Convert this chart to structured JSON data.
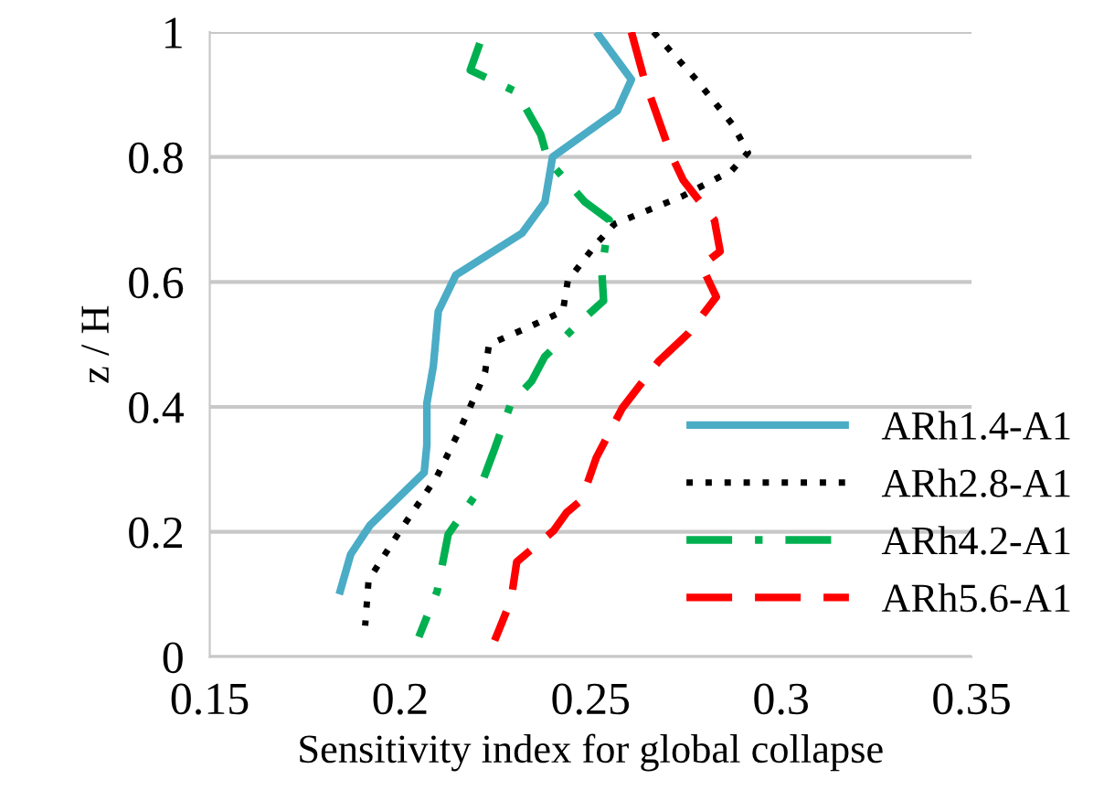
{
  "chart_data": {
    "type": "line",
    "xlabel": "Sensitivity index for global collapse",
    "ylabel": "z / H",
    "xlim": [
      0.15,
      0.35
    ],
    "xticks": [
      0.15,
      0.2,
      0.25,
      0.3,
      0.35
    ],
    "ylim": [
      0,
      1
    ],
    "yticks": [
      0,
      0.2,
      0.4,
      0.6,
      0.8,
      1
    ],
    "grid": "y",
    "legend": "bottom right",
    "series": [
      {
        "name": "ARh1.4-A1",
        "color": "#4bacc6",
        "line_style": "solid",
        "x": [
          0.2515,
          0.2607,
          0.257,
          0.24,
          0.238,
          0.232,
          0.2146,
          0.21,
          0.2087,
          0.207,
          0.207,
          0.2063,
          0.192,
          0.187,
          0.184
        ],
        "values": [
          1.0,
          0.924,
          0.874,
          0.8,
          0.728,
          0.678,
          0.611,
          0.553,
          0.465,
          0.406,
          0.339,
          0.295,
          0.21,
          0.164,
          0.1
        ]
      },
      {
        "name": "ARh2.8-A1",
        "color": "#000000",
        "line_style": "dotted",
        "x": [
          0.2665,
          0.2777,
          0.2874,
          0.2913,
          0.287,
          0.274,
          0.2563,
          0.2515,
          0.244,
          0.2427,
          0.232,
          0.2233,
          0.2223,
          0.221,
          0.216,
          0.2097,
          0.2,
          0.1917,
          0.1908
        ],
        "values": [
          1.0,
          0.924,
          0.851,
          0.807,
          0.778,
          0.737,
          0.693,
          0.661,
          0.602,
          0.553,
          0.523,
          0.5,
          0.456,
          0.436,
          0.368,
          0.289,
          0.202,
          0.123,
          0.05
        ]
      },
      {
        "name": "ARh4.2-A1",
        "color": "#00b050",
        "line_style": "dashdot",
        "x": [
          0.2209,
          0.2184,
          0.2306,
          0.2369,
          0.2388,
          0.2485,
          0.2549,
          0.2529,
          0.2534,
          0.2476,
          0.2379,
          0.2345,
          0.2291,
          0.2248,
          0.2209,
          0.2126,
          0.2097,
          0.2049
        ],
        "values": [
          0.982,
          0.939,
          0.904,
          0.836,
          0.795,
          0.728,
          0.699,
          0.62,
          0.57,
          0.538,
          0.48,
          0.441,
          0.406,
          0.333,
          0.269,
          0.196,
          0.105,
          0.032
        ]
      },
      {
        "name": "ARh5.6-A1",
        "color": "#ff0000",
        "line_style": "dashed",
        "x": [
          0.2607,
          0.2641,
          0.2709,
          0.2743,
          0.2825,
          0.284,
          0.2791,
          0.283,
          0.2757,
          0.268,
          0.2631,
          0.2583,
          0.2515,
          0.2476,
          0.2437,
          0.2403,
          0.2306,
          0.2291,
          0.2248
        ],
        "values": [
          1.0,
          0.924,
          0.807,
          0.763,
          0.699,
          0.649,
          0.626,
          0.576,
          0.518,
          0.474,
          0.436,
          0.398,
          0.319,
          0.251,
          0.231,
          0.202,
          0.152,
          0.091,
          0.026
        ]
      }
    ]
  }
}
